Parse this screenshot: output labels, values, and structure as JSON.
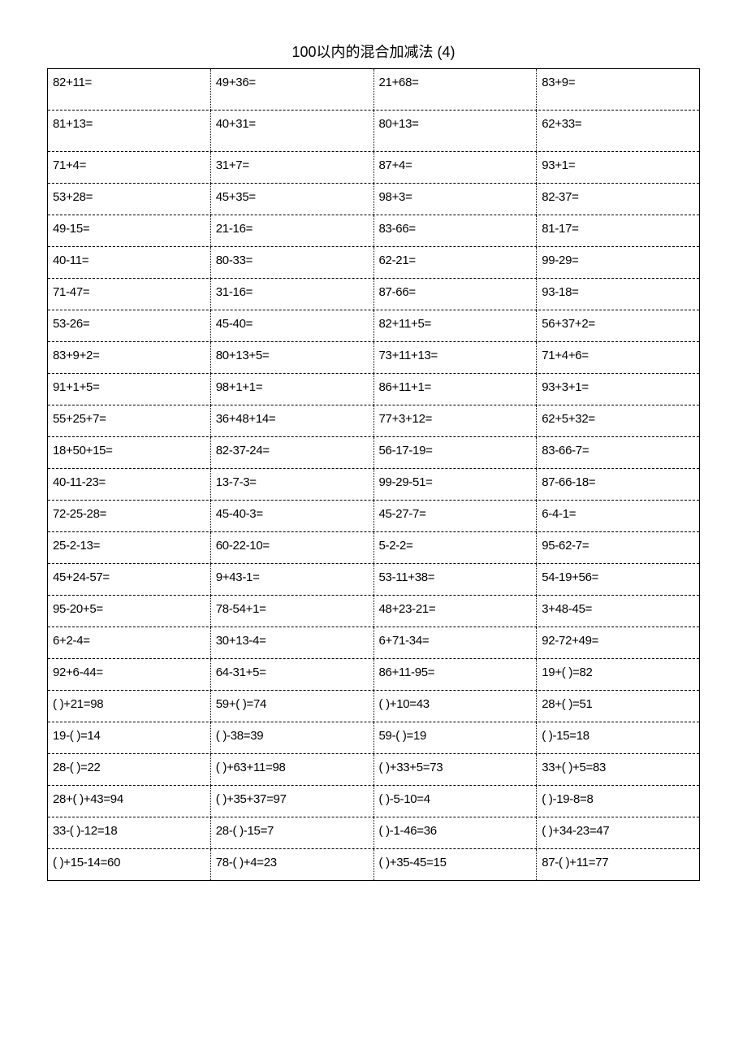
{
  "title": "100以内的混合加减法 (4)",
  "columns": 4,
  "tall_rows": [
    0,
    1
  ],
  "rows": [
    [
      "82+11=",
      "49+36=",
      "21+68=",
      "83+9="
    ],
    [
      "81+13=",
      "40+31=",
      "80+13=",
      "62+33="
    ],
    [
      "71+4=",
      "31+7=",
      "87+4=",
      "93+1="
    ],
    [
      "53+28=",
      "45+35=",
      "98+3=",
      "82-37="
    ],
    [
      "49-15=",
      "21-16=",
      "83-66=",
      "81-17="
    ],
    [
      "40-11=",
      "80-33=",
      "62-21=",
      "99-29="
    ],
    [
      "71-47=",
      "31-16=",
      "87-66=",
      "93-18="
    ],
    [
      "53-26=",
      "45-40=",
      "82+11+5=",
      "56+37+2="
    ],
    [
      "83+9+2=",
      "80+13+5=",
      "73+11+13=",
      "71+4+6="
    ],
    [
      "91+1+5=",
      "98+1+1=",
      "86+11+1=",
      "93+3+1="
    ],
    [
      "55+25+7=",
      "36+48+14=",
      "77+3+12=",
      "62+5+32="
    ],
    [
      "18+50+15=",
      "82-37-24=",
      "56-17-19=",
      "83-66-7="
    ],
    [
      "40-11-23=",
      "13-7-3=",
      "99-29-51=",
      "87-66-18="
    ],
    [
      "72-25-28=",
      "45-40-3=",
      "45-27-7=",
      "6-4-1="
    ],
    [
      "25-2-13=",
      "60-22-10=",
      "5-2-2=",
      "95-62-7="
    ],
    [
      "45+24-57=",
      "9+43-1=",
      "53-11+38=",
      "54-19+56="
    ],
    [
      "95-20+5=",
      "78-54+1=",
      "48+23-21=",
      "3+48-45="
    ],
    [
      "6+2-4=",
      "30+13-4=",
      "6+71-34=",
      "92-72+49="
    ],
    [
      "92+6-44=",
      "64-31+5=",
      "86+11-95=",
      "19+(     )=82"
    ],
    [
      "(    )+21=98",
      "59+(    )=74",
      "(    )+10=43",
      "28+(     )=51"
    ],
    [
      "19-(    )=14",
      "(    )-38=39",
      "59-(    )=19",
      "(    )-15=18"
    ],
    [
      "28-(    )=22",
      "(    )+63+11=98",
      "(    )+33+5=73",
      "33+(     )+5=83"
    ],
    [
      "28+(    )+43=94",
      "(    )+35+37=97",
      "(    )-5-10=4",
      "(    )-19-8=8"
    ],
    [
      "33-(    )-12=18",
      "28-(    )-15=7",
      "(    )-1-46=36",
      "(    )+34-23=47"
    ],
    [
      "(    )+15-14=60",
      "78-(    )+4=23",
      "(    )+35-45=15",
      "87-(     )+11=77"
    ]
  ]
}
